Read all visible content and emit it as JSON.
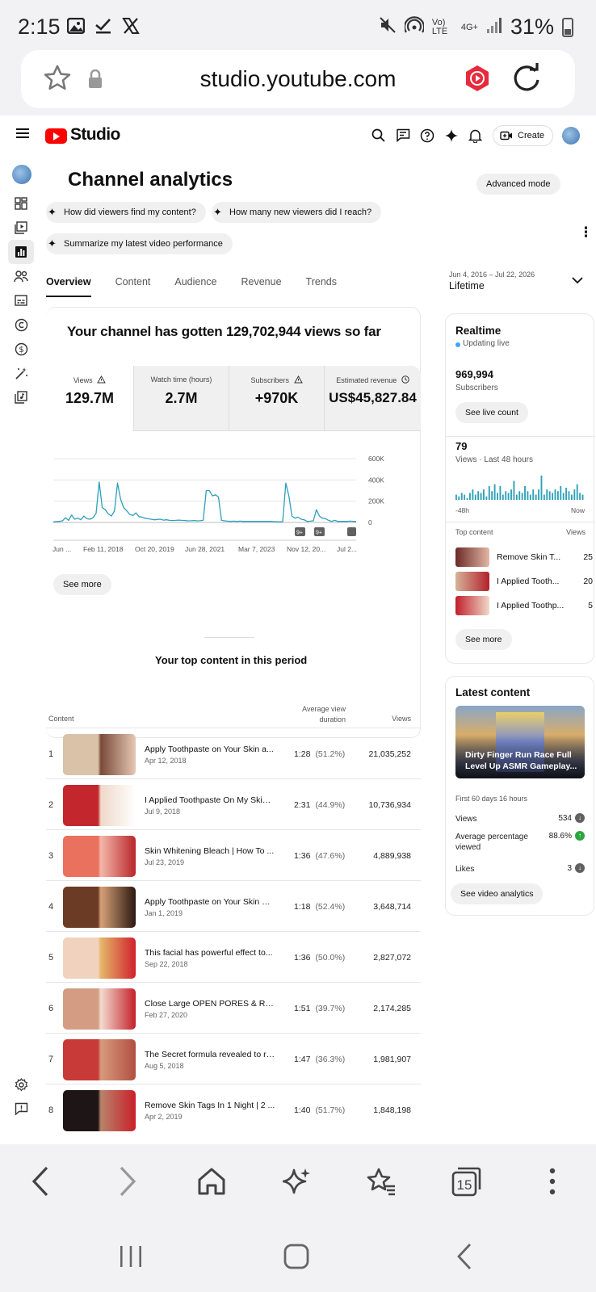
{
  "status_bar": {
    "time": "2:15",
    "network": "Vo) LTE",
    "signal": "4G+",
    "battery": "31%"
  },
  "browser": {
    "url": "studio.youtube.com",
    "tab_count": "15"
  },
  "app": {
    "logo": "Studio",
    "create_label": "Create"
  },
  "page": {
    "title": "Channel analytics",
    "advanced_mode": "Advanced mode",
    "chips": [
      "How did viewers find my content?",
      "How many new viewers did I reach?",
      "Summarize my latest video performance"
    ],
    "tabs": [
      "Overview",
      "Content",
      "Audience",
      "Revenue",
      "Trends"
    ],
    "range_small": "Jun 4, 2016 – Jul 22, 2026",
    "range": "Lifetime"
  },
  "overview": {
    "headline": "Your channel has gotten 129,702,944 views so far",
    "stats": [
      {
        "label": "Views",
        "value": "129.7M"
      },
      {
        "label": "Watch time (hours)",
        "value": "2.7M"
      },
      {
        "label": "Subscribers",
        "value": "+970K"
      },
      {
        "label": "Estimated revenue",
        "value": "US$45,827.84"
      }
    ],
    "see_more": "See more"
  },
  "chart_data": {
    "type": "line",
    "series": [
      {
        "values": [
          5,
          8,
          10,
          15,
          45,
          20,
          70,
          30,
          40,
          25,
          60,
          35,
          30,
          45,
          85,
          380,
          140,
          120,
          80,
          60,
          110,
          370,
          220,
          140,
          110,
          75,
          65,
          90,
          55,
          50,
          40,
          35,
          30,
          25,
          28,
          30,
          22,
          25,
          20,
          18,
          20,
          22,
          20,
          18,
          15,
          16,
          18,
          15,
          16,
          20,
          300,
          300,
          250,
          260,
          240,
          20,
          15,
          12,
          10,
          12,
          10,
          12,
          10,
          10,
          10,
          10,
          10,
          10,
          10,
          10,
          10,
          10,
          8,
          6,
          7,
          8,
          370,
          250,
          60,
          40,
          50,
          30,
          25,
          10,
          12,
          15,
          120,
          60,
          40,
          35,
          20,
          10,
          20,
          10,
          10,
          10,
          10,
          12,
          10,
          10
        ]
      }
    ],
    "x_ticks": [
      "Jun ...",
      "Feb 11, 2018",
      "Oct 20, 2019",
      "Jun 28, 2021",
      "Mar 7, 2023",
      "Nov 12, 20...",
      "Jul 2..."
    ],
    "y_ticks": [
      "600K",
      "400K",
      "200K",
      "0"
    ],
    "ylim": [
      0,
      600000
    ],
    "markers": [
      "9+",
      "9+"
    ],
    "grid": true
  },
  "top_content": {
    "title": "Your top content in this period",
    "col_content": "Content",
    "col_avd": "Average view duration",
    "col_views": "Views",
    "rows": [
      {
        "rank": "1",
        "title": "Apply Toothpaste on Your Skin a...",
        "date": "Apr 12, 2018",
        "duration": "1:28",
        "pct": "(51.2%)",
        "views": "21,035,252",
        "colors": [
          "#d9c2a8",
          "#7a4b3a",
          "#e6c8b5"
        ]
      },
      {
        "rank": "2",
        "title": "I Applied Toothpaste On My Skin ...",
        "date": "Jul 9, 2018",
        "duration": "2:31",
        "pct": "(44.9%)",
        "views": "10,736,934",
        "colors": [
          "#c4262e",
          "#efd9c9",
          "#ffffff"
        ]
      },
      {
        "rank": "3",
        "title": "Skin Whitening Bleach | How To ...",
        "date": "Jul 23, 2019",
        "duration": "1:36",
        "pct": "(47.6%)",
        "views": "4,889,938",
        "colors": [
          "#e9715e",
          "#f4b6a8",
          "#b8262b"
        ]
      },
      {
        "rank": "4",
        "title": "Apply Toothpaste on Your Skin & ...",
        "date": "Jan 1, 2019",
        "duration": "1:18",
        "pct": "(52.4%)",
        "views": "3,648,714",
        "colors": [
          "#6b3b25",
          "#d7a178",
          "#2b1810"
        ]
      },
      {
        "rank": "5",
        "title": "This facial has powerful effect to...",
        "date": "Sep 22, 2018",
        "duration": "1:36",
        "pct": "(50.0%)",
        "views": "2,827,072",
        "colors": [
          "#f0d2be",
          "#e5b66a",
          "#d0202b"
        ]
      },
      {
        "rank": "6",
        "title": "Close Large OPEN PORES & Rem...",
        "date": "Feb 27, 2020",
        "duration": "1:51",
        "pct": "(39.7%)",
        "views": "2,174,285",
        "colors": [
          "#d49c83",
          "#f3dbcf",
          "#c3202a"
        ]
      },
      {
        "rank": "7",
        "title": "The Secret formula revealed to re...",
        "date": "Aug 5, 2018",
        "duration": "1:47",
        "pct": "(36.3%)",
        "views": "1,981,907",
        "colors": [
          "#c83a37",
          "#d79a7c",
          "#b14f41"
        ]
      },
      {
        "rank": "8",
        "title": "Remove Skin Tags In 1 Night | 2 ...",
        "date": "Apr 2, 2019",
        "duration": "1:40",
        "pct": "(51.7%)",
        "views": "1,848,198",
        "colors": [
          "#1e1616",
          "#b8836a",
          "#c9202a"
        ]
      }
    ]
  },
  "realtime": {
    "title": "Realtime",
    "updating": "Updating live",
    "subs_value": "969,994",
    "subs_label": "Subscribers",
    "see_live": "See live count",
    "views_value": "79",
    "views_label": "Views · Last 48 hours",
    "bars": [
      3,
      2,
      4,
      3,
      1,
      4,
      6,
      3,
      5,
      4,
      6,
      2,
      8,
      5,
      9,
      4,
      8,
      3,
      5,
      4,
      6,
      11,
      3,
      5,
      4,
      8,
      5,
      3,
      6,
      3,
      6,
      14,
      3,
      6,
      5,
      4,
      6,
      5,
      8,
      4,
      7,
      5,
      3,
      6,
      9,
      4,
      3
    ],
    "x_start": "-48h",
    "x_end": "Now",
    "top_content_label": "Top content",
    "views_col": "Views",
    "items": [
      {
        "title": "Remove Skin T...",
        "views": "25",
        "colors": [
          "#6b2a26",
          "#e3b7a6"
        ]
      },
      {
        "title": "I Applied Tooth...",
        "views": "20",
        "colors": [
          "#d6b39a",
          "#b4202a"
        ]
      },
      {
        "title": "I Applied Toothp...",
        "views": "5",
        "colors": [
          "#c01f2b",
          "#efd9c9"
        ]
      }
    ],
    "see_more": "See more"
  },
  "latest": {
    "title": "Latest content",
    "video_title": "Dirty Finger Run Race Full Level Up ASMR Gameplay...",
    "period": "First 60 days 16 hours",
    "metrics": [
      {
        "label": "Views",
        "value": "534",
        "trend": "down"
      },
      {
        "label": "Average percentage viewed",
        "value": "88.6%",
        "trend": "up"
      },
      {
        "label": "Likes",
        "value": "3",
        "trend": "down"
      }
    ],
    "see_analytics": "See video analytics"
  },
  "colors": {
    "accent": "#2ea0b9",
    "brand": "#ff0000",
    "live": "#3ea6ff",
    "up": "#2ba640",
    "down": "#606060"
  }
}
